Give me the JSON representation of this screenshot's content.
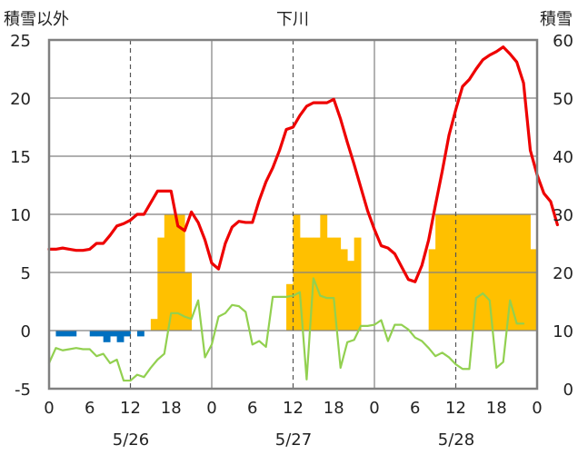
{
  "chart_data": {
    "type": "meteogram",
    "title": "下川",
    "left_axis_label": "積雪以外",
    "right_axis_label": "積雪",
    "left_ylim": [
      -5,
      25
    ],
    "left_ticks": [
      -5,
      0,
      5,
      10,
      15,
      20,
      25
    ],
    "right_ylim": [
      0,
      60
    ],
    "right_ticks": [
      0,
      10,
      20,
      30,
      40,
      50,
      60
    ],
    "x_hour_ticks": [
      "0",
      "6",
      "12",
      "18",
      "0",
      "6",
      "12",
      "18",
      "0",
      "6",
      "12",
      "18",
      "0"
    ],
    "days": [
      "5/26",
      "5/27",
      "5/28"
    ],
    "colors": {
      "temperature": "#ee0000",
      "green_series": "#92d050",
      "orange_bars": "#ffc000",
      "blue_bars": "#0070c0",
      "frame": "#808080"
    },
    "temperature": [
      7.0,
      7.0,
      7.1,
      7.0,
      6.9,
      6.9,
      7.0,
      7.5,
      7.5,
      8.2,
      9.0,
      9.2,
      9.5,
      10.0,
      10.0,
      11.0,
      12.0,
      12.0,
      12.0,
      9.0,
      8.6,
      10.2,
      9.3,
      7.8,
      5.8,
      5.3,
      7.5,
      8.9,
      9.4,
      9.3,
      9.3,
      11.2,
      12.8,
      14.0,
      15.5,
      17.3,
      17.5,
      18.5,
      19.3,
      19.6,
      19.6,
      19.6,
      19.9,
      18.2,
      16.2,
      14.3,
      12.3,
      10.3,
      8.7,
      7.3,
      7.1,
      6.6,
      5.5,
      4.4,
      4.2,
      5.6,
      7.8,
      10.8,
      13.7,
      16.8,
      19.0,
      21.0,
      21.6,
      22.5,
      23.3,
      23.7,
      24.0,
      24.4,
      23.8,
      23.1,
      21.3,
      15.5,
      13.4,
      11.8,
      11.1,
      9.1
    ],
    "green_series": [
      -2.8,
      -1.5,
      -1.7,
      -1.6,
      -1.5,
      -1.6,
      -1.6,
      -2.2,
      -2.0,
      -2.8,
      -2.5,
      -4.3,
      -4.3,
      -3.8,
      -4.0,
      -3.2,
      -2.5,
      -2.0,
      1.5,
      1.5,
      1.2,
      1.0,
      2.6,
      -2.3,
      -1.2,
      1.2,
      1.5,
      2.2,
      2.1,
      1.6,
      -1.2,
      -0.9,
      -1.4,
      2.9,
      2.9,
      2.9,
      3.0,
      3.3,
      -4.2,
      4.5,
      3.0,
      2.8,
      2.8,
      -3.2,
      -1.0,
      -0.8,
      0.4,
      0.4,
      0.5,
      0.9,
      -0.9,
      0.5,
      0.5,
      0.1,
      -0.6,
      -0.9,
      -1.5,
      -2.2,
      -1.9,
      -2.3,
      -2.9,
      -3.3,
      -3.3,
      2.8,
      3.2,
      2.6,
      -3.2,
      -2.7,
      2.6,
      0.6,
      0.6
    ],
    "orange_bars": {
      "start_hour": 0,
      "values": [
        0,
        0,
        0,
        0,
        0,
        0,
        0,
        0,
        0,
        0,
        0,
        0,
        0,
        0,
        0,
        1,
        8,
        10,
        10,
        10,
        5,
        0,
        0,
        0,
        0,
        0,
        0,
        0,
        0,
        0,
        0,
        0,
        0,
        0,
        0,
        4,
        10,
        8,
        8,
        8,
        10,
        8,
        8,
        7,
        6,
        8,
        0,
        0,
        0,
        0,
        0,
        0,
        0,
        0,
        0,
        0,
        7,
        10,
        10,
        10,
        10,
        10,
        10,
        10,
        10,
        10,
        10,
        10,
        10,
        10,
        10,
        7,
        0
      ]
    },
    "blue_bars": {
      "values": [
        0,
        -0.5,
        -0.5,
        -0.5,
        0,
        0,
        -0.5,
        -0.5,
        -1.0,
        -0.5,
        -1.0,
        -0.5,
        0,
        -0.5,
        0,
        0,
        0,
        0,
        0,
        0,
        0,
        0,
        0,
        0,
        0,
        0,
        0,
        0,
        0,
        0,
        0,
        0,
        0,
        0,
        0,
        0,
        0,
        0,
        0,
        0,
        0,
        0,
        0,
        0,
        0,
        0,
        0,
        0,
        0,
        0,
        0,
        0,
        0,
        0,
        0,
        0,
        0,
        0,
        0,
        0,
        0,
        0,
        0,
        0,
        0,
        0,
        0,
        0,
        0,
        0,
        0,
        0,
        0
      ]
    }
  }
}
